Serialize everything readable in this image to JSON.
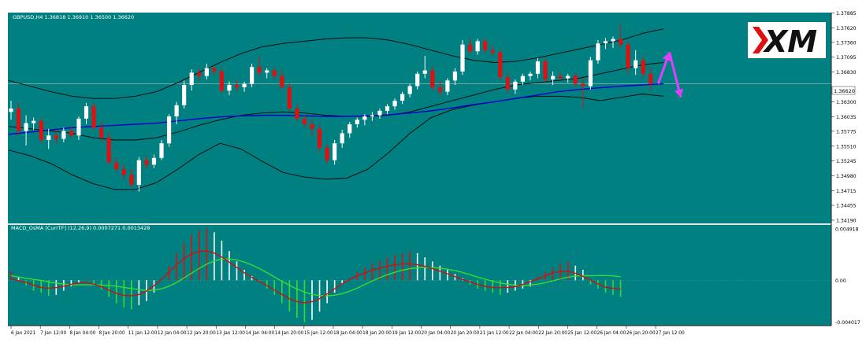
{
  "chart_data": {
    "type": "candlestick",
    "symbol_header": "GBPUSD,H4  1.36818 1.36910 1.36500 1.36620",
    "current_price_label": "1.36620",
    "price_ticks": [
      "1.37885",
      "1.37620",
      "1.37360",
      "1.37095",
      "1.36830",
      "1.36300",
      "1.36035",
      "1.35775",
      "1.35510",
      "1.35245",
      "1.34980",
      "1.34715",
      "1.34455",
      "1.34190"
    ],
    "price_tick_values": [
      1.37885,
      1.3762,
      1.3736,
      1.37095,
      1.3683,
      1.363,
      1.36035,
      1.35775,
      1.3551,
      1.35245,
      1.3498,
      1.34715,
      1.34455,
      1.3419
    ],
    "price_range": [
      1.3419,
      1.3789
    ],
    "time_labels": [
      "6 Jan 2021",
      "7 Jan 12:00",
      "8 Jan 04:00",
      "8 Jan 20:00",
      "11 Jan 12:00",
      "12 Jan 04:00",
      "12 Jan 20:00",
      "13 Jan 12:00",
      "14 Jan 04:00",
      "14 Jan 20:00",
      "15 Jan 12:00",
      "18 Jan 04:00",
      "18 Jan 20:00",
      "19 Jan 12:00",
      "20 Jan 04:00",
      "20 Jan 20:00",
      "21 Jan 12:00",
      "22 Jan 04:00",
      "22 Jan 20:00",
      "25 Jan 12:00",
      "26 Jan 04:00",
      "26 Jan 20:00",
      "27 Jan 12:00"
    ],
    "candles": [
      [
        1.3612,
        1.3632,
        1.3598,
        1.3618
      ],
      [
        1.3618,
        1.3628,
        1.357,
        1.3578
      ],
      [
        1.3578,
        1.3606,
        1.3552,
        1.3592
      ],
      [
        1.3592,
        1.3602,
        1.358,
        1.3596
      ],
      [
        1.3596,
        1.36,
        1.3556,
        1.3562
      ],
      [
        1.3562,
        1.3582,
        1.3546,
        1.357
      ],
      [
        1.357,
        1.358,
        1.3556,
        1.3564
      ],
      [
        1.3564,
        1.3584,
        1.3558,
        1.3578
      ],
      [
        1.3578,
        1.3586,
        1.3566,
        1.357
      ],
      [
        1.357,
        1.3604,
        1.3562,
        1.36
      ],
      [
        1.36,
        1.3628,
        1.359,
        1.3622
      ],
      [
        1.3622,
        1.3628,
        1.358,
        1.3584
      ],
      [
        1.3584,
        1.3594,
        1.356,
        1.3566
      ],
      [
        1.3566,
        1.3576,
        1.3518,
        1.3522
      ],
      [
        1.3522,
        1.353,
        1.3506,
        1.351
      ],
      [
        1.351,
        1.3518,
        1.3492,
        1.35
      ],
      [
        1.35,
        1.351,
        1.3478,
        1.3482
      ],
      [
        1.3482,
        1.3532,
        1.347,
        1.3526
      ],
      [
        1.3526,
        1.3536,
        1.3512,
        1.3518
      ],
      [
        1.3518,
        1.3536,
        1.3512,
        1.353
      ],
      [
        1.353,
        1.3562,
        1.3526,
        1.3556
      ],
      [
        1.3556,
        1.3608,
        1.355,
        1.3604
      ],
      [
        1.3604,
        1.363,
        1.359,
        1.3624
      ],
      [
        1.3624,
        1.3668,
        1.3618,
        1.366
      ],
      [
        1.366,
        1.3688,
        1.365,
        1.3682
      ],
      [
        1.3682,
        1.369,
        1.3668,
        1.3676
      ],
      [
        1.3676,
        1.3698,
        1.367,
        1.369
      ],
      [
        1.369,
        1.3695,
        1.3678,
        1.3684
      ],
      [
        1.3684,
        1.369,
        1.3646,
        1.365
      ],
      [
        1.365,
        1.3666,
        1.3642,
        1.366
      ],
      [
        1.366,
        1.3668,
        1.3648,
        1.3656
      ],
      [
        1.3656,
        1.3666,
        1.3648,
        1.3662
      ],
      [
        1.3662,
        1.3698,
        1.3656,
        1.3692
      ],
      [
        1.3692,
        1.3712,
        1.3676,
        1.3682
      ],
      [
        1.3682,
        1.369,
        1.3672,
        1.3686
      ],
      [
        1.3686,
        1.3692,
        1.367,
        1.3676
      ],
      [
        1.3676,
        1.3686,
        1.3652,
        1.3656
      ],
      [
        1.3656,
        1.3662,
        1.3614,
        1.3618
      ],
      [
        1.3618,
        1.3626,
        1.3596,
        1.36
      ],
      [
        1.36,
        1.3606,
        1.3584,
        1.359
      ],
      [
        1.359,
        1.36,
        1.357,
        1.3582
      ],
      [
        1.3582,
        1.359,
        1.354,
        1.3548
      ],
      [
        1.3548,
        1.3554,
        1.352,
        1.3526
      ],
      [
        1.3526,
        1.3562,
        1.3518,
        1.3556
      ],
      [
        1.3556,
        1.358,
        1.3548,
        1.3574
      ],
      [
        1.3574,
        1.3594,
        1.3566,
        1.359
      ],
      [
        1.359,
        1.3602,
        1.3584,
        1.3598
      ],
      [
        1.3598,
        1.3608,
        1.3588,
        1.3604
      ],
      [
        1.3604,
        1.3612,
        1.3596,
        1.3606
      ],
      [
        1.3606,
        1.3618,
        1.36,
        1.3614
      ],
      [
        1.3614,
        1.3626,
        1.3608,
        1.3622
      ],
      [
        1.3622,
        1.3636,
        1.3616,
        1.3632
      ],
      [
        1.3632,
        1.3648,
        1.3626,
        1.3644
      ],
      [
        1.3644,
        1.3662,
        1.3638,
        1.3658
      ],
      [
        1.3658,
        1.3684,
        1.3652,
        1.368
      ],
      [
        1.368,
        1.3712,
        1.3672,
        1.3686
      ],
      [
        1.3686,
        1.3694,
        1.365,
        1.3656
      ],
      [
        1.3656,
        1.3668,
        1.364,
        1.3648
      ],
      [
        1.3648,
        1.3672,
        1.3642,
        1.3668
      ],
      [
        1.3668,
        1.369,
        1.366,
        1.3684
      ],
      [
        1.3684,
        1.374,
        1.3678,
        1.3732
      ],
      [
        1.3732,
        1.3742,
        1.3716,
        1.372
      ],
      [
        1.372,
        1.3742,
        1.3714,
        1.3738
      ],
      [
        1.3738,
        1.3744,
        1.3716,
        1.3722
      ],
      [
        1.3722,
        1.373,
        1.3712,
        1.3718
      ],
      [
        1.3718,
        1.3724,
        1.3668,
        1.3674
      ],
      [
        1.3674,
        1.3682,
        1.3646,
        1.3652
      ],
      [
        1.3652,
        1.367,
        1.3644,
        1.3666
      ],
      [
        1.3666,
        1.368,
        1.366,
        1.3676
      ],
      [
        1.3676,
        1.3684,
        1.3668,
        1.368
      ],
      [
        1.368,
        1.3708,
        1.3672,
        1.3702
      ],
      [
        1.3702,
        1.3708,
        1.3664,
        1.367
      ],
      [
        1.367,
        1.3684,
        1.366,
        1.3676
      ],
      [
        1.3676,
        1.3682,
        1.3668,
        1.3672
      ],
      [
        1.3672,
        1.368,
        1.3664,
        1.3676
      ],
      [
        1.3676,
        1.3682,
        1.3656,
        1.3662
      ],
      [
        1.3662,
        1.3672,
        1.3618,
        1.3658
      ],
      [
        1.3658,
        1.371,
        1.3652,
        1.3704
      ],
      [
        1.3704,
        1.374,
        1.3698,
        1.3734
      ],
      [
        1.3734,
        1.3744,
        1.3724,
        1.3738
      ],
      [
        1.3738,
        1.3746,
        1.3726,
        1.3742
      ],
      [
        1.3742,
        1.3768,
        1.3726,
        1.3732
      ],
      [
        1.3732,
        1.3738,
        1.368,
        1.369
      ],
      [
        1.369,
        1.3722,
        1.3678,
        1.3704
      ],
      [
        1.3704,
        1.3712,
        1.3672,
        1.368
      ],
      [
        1.368,
        1.3691,
        1.365,
        1.3662
      ]
    ],
    "bollinger": {
      "upper": [
        1.3668,
        1.3658,
        1.3648,
        1.364,
        1.3636,
        1.3636,
        1.364,
        1.3648,
        1.3664,
        1.3682,
        1.37,
        1.3716,
        1.3728,
        1.3734,
        1.3738,
        1.3742,
        1.3744,
        1.3744,
        1.374,
        1.3732,
        1.3722,
        1.3712,
        1.3704,
        1.37,
        1.3702,
        1.3708,
        1.3716,
        1.3724,
        1.3732,
        1.374,
        1.3752,
        1.376
      ],
      "middle": [
        1.3586,
        1.3582,
        1.3578,
        1.3574,
        1.3566,
        1.3562,
        1.3562,
        1.3566,
        1.3576,
        1.3588,
        1.3598,
        1.3606,
        1.361,
        1.3612,
        1.361,
        1.3606,
        1.3604,
        1.3604,
        1.3606,
        1.3612,
        1.3622,
        1.3632,
        1.3642,
        1.3652,
        1.366,
        1.3664,
        1.3668,
        1.3672,
        1.368,
        1.3688,
        1.3696,
        1.37
      ],
      "lower": [
        1.3544,
        1.3534,
        1.352,
        1.35,
        1.3484,
        1.3474,
        1.3474,
        1.3486,
        1.351,
        1.3536,
        1.3556,
        1.3546,
        1.3524,
        1.3504,
        1.3496,
        1.3492,
        1.3494,
        1.351,
        1.354,
        1.3574,
        1.3602,
        1.3616,
        1.3624,
        1.363,
        1.3636,
        1.364,
        1.364,
        1.3638,
        1.3632,
        1.3638,
        1.3644,
        1.364
      ]
    },
    "moving_average": [
      1.3572,
      1.3576,
      1.358,
      1.3584,
      1.3586,
      1.3588,
      1.359,
      1.3592,
      1.3596,
      1.36,
      1.3603,
      1.3605,
      1.3606,
      1.3606,
      1.3605,
      1.3604,
      1.3604,
      1.3605,
      1.3607,
      1.361,
      1.3614,
      1.3619,
      1.3625,
      1.363,
      1.3636,
      1.3642,
      1.3648,
      1.3652,
      1.3655,
      1.3658,
      1.366,
      1.3662
    ],
    "forecast_arrows": [
      {
        "name": "up",
        "color": "#e040fb",
        "from_index": 86,
        "to_index": 87.5,
        "from_price": 1.3662,
        "to_price": 1.3718
      },
      {
        "name": "down",
        "color": "#e040fb",
        "from_index": 87.5,
        "to_index": 89,
        "from_price": 1.3718,
        "to_price": 1.3638
      }
    ],
    "current_price_line": 1.3662,
    "macd": {
      "label": "MACD_OsMA [CurrTF] (12,26,9) 0.0007271 0.0013428",
      "ticks": [
        "0.004918",
        "0.00",
        "-0.004017"
      ],
      "tick_values": [
        0.004918,
        0.0,
        -0.004017
      ],
      "range": [
        -0.0042,
        0.005
      ],
      "histogram": [
        0.0009,
        0.0003,
        -0.0005,
        -0.001,
        -0.0012,
        -0.0015,
        -0.0014,
        -0.001,
        -0.0006,
        -0.0002,
        0.0001,
        -0.0004,
        -0.0009,
        -0.0016,
        -0.0022,
        -0.0026,
        -0.0028,
        -0.0024,
        -0.002,
        -0.0012,
        0.0,
        0.0014,
        0.0026,
        0.0036,
        0.0044,
        0.0048,
        0.005,
        0.0046,
        0.0038,
        0.0028,
        0.0018,
        0.001,
        0.0004,
        -0.0002,
        -0.0008,
        -0.0014,
        -0.0022,
        -0.003,
        -0.0036,
        -0.004,
        -0.0038,
        -0.003,
        -0.0022,
        -0.0012,
        -0.0004,
        0.0002,
        0.0008,
        0.0012,
        0.0016,
        0.0019,
        0.0022,
        0.0024,
        0.0026,
        0.0028,
        0.0026,
        0.0022,
        0.0018,
        0.0014,
        0.001,
        0.0006,
        0.0002,
        -0.0004,
        -0.0008,
        -0.001,
        -0.0012,
        -0.0014,
        -0.0012,
        -0.001,
        -0.0008,
        -0.0006,
        0.0004,
        0.0008,
        0.0012,
        0.0016,
        0.0018,
        0.0014,
        0.001,
        -0.0004,
        -0.0008,
        -0.0012,
        -0.0014,
        -0.0016
      ],
      "signal_color": "#33dd33",
      "macd_color": "#cc1111"
    },
    "colors": {
      "background": "#008080",
      "bull": "#ffffff",
      "bear": "#dd1111",
      "bands": "#000000",
      "ma": "#0000cc",
      "current_line": "#a0b0b0",
      "hist_up_rising": "#dd1111",
      "hist_up_falling": "#ffffff",
      "hist_down_falling": "#33dd33",
      "hist_down_rising": "#ffffff"
    }
  },
  "logo": {
    "text": "XM"
  }
}
